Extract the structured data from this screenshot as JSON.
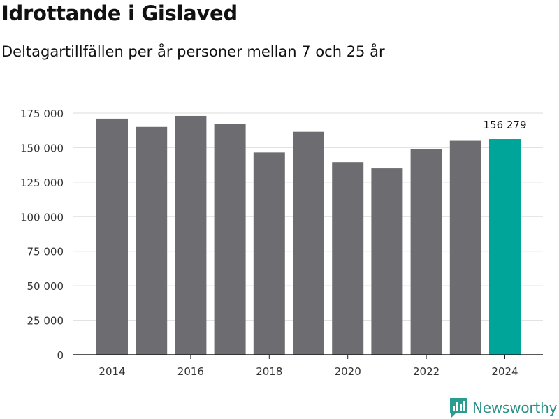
{
  "header": {
    "title": "Idrottande i Gislaved",
    "subtitle": "Deltagartillfällen per år personer mellan 7 och 25 år"
  },
  "brand": {
    "name": "Newsworthy",
    "logo_icon": "newsworthy-chart-icon",
    "color": "#2a9d8f"
  },
  "colors": {
    "bar": "#6d6c70",
    "highlight": "#00a59a",
    "grid": "#dedede",
    "axis": "#222222"
  },
  "chart_data": {
    "type": "bar",
    "title": "Idrottande i Gislaved",
    "subtitle": "Deltagartillfällen per år personer mellan 7 och 25 år",
    "categories": [
      "2014",
      "2015",
      "2016",
      "2017",
      "2018",
      "2019",
      "2020",
      "2021",
      "2022",
      "2023",
      "2024"
    ],
    "values": [
      171000,
      165000,
      173000,
      167000,
      146500,
      161500,
      139500,
      135000,
      149000,
      155000,
      156279
    ],
    "highlight_index": 10,
    "data_labels": [
      {
        "index": 10,
        "text": "156 279"
      }
    ],
    "x_tick_labels": [
      "2014",
      "2016",
      "2018",
      "2020",
      "2022",
      "2024"
    ],
    "y_tick_values": [
      0,
      25000,
      50000,
      75000,
      100000,
      125000,
      150000,
      175000
    ],
    "y_tick_labels": [
      "0",
      "25 000",
      "50 000",
      "75 000",
      "100 000",
      "125 000",
      "150 000",
      "175 000"
    ],
    "ylim": [
      0,
      175000
    ],
    "xlabel": "",
    "ylabel": "",
    "grid": true,
    "legend": "none"
  }
}
